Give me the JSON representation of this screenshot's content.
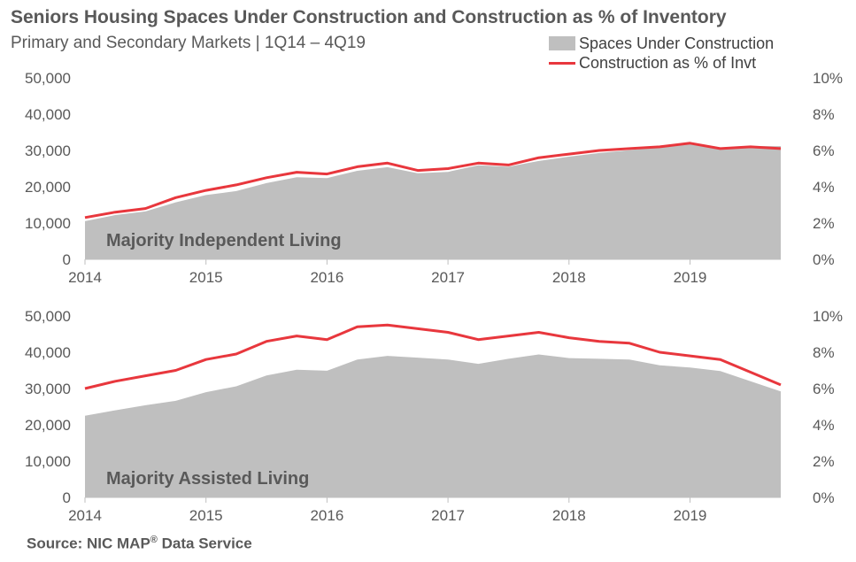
{
  "header": {
    "title": "Seniors Housing Spaces Under Construction and Construction as % of Inventory",
    "subtitle": "Primary and Secondary Markets | 1Q14 – 4Q19"
  },
  "legend": {
    "area_label": "Spaces Under Construction",
    "line_label": "Construction as % of Invt"
  },
  "source": {
    "prefix": "Source: NIC MAP",
    "registered": "®",
    "suffix": " Data Service"
  },
  "colors": {
    "area": "#bfbfbf",
    "line": "#e8373d",
    "text": "#595959"
  },
  "chart_data": [
    {
      "type": "area",
      "annotation": "Majority Independent Living",
      "x": [
        "1Q14",
        "2Q14",
        "3Q14",
        "4Q14",
        "1Q15",
        "2Q15",
        "3Q15",
        "4Q15",
        "1Q16",
        "2Q16",
        "3Q16",
        "4Q16",
        "1Q17",
        "2Q17",
        "3Q17",
        "4Q17",
        "1Q18",
        "2Q18",
        "3Q18",
        "4Q18",
        "1Q19",
        "2Q19",
        "3Q19",
        "4Q19"
      ],
      "x_tick_labels": [
        "2014",
        "2015",
        "2016",
        "2017",
        "2018",
        "2019"
      ],
      "series": [
        {
          "name": "Spaces Under Construction",
          "axis": "left",
          "type": "area",
          "values": [
            10500,
            12200,
            13200,
            15700,
            17700,
            18800,
            21000,
            22600,
            22400,
            24400,
            25400,
            23700,
            24100,
            25900,
            25500,
            27100,
            28300,
            29300,
            30100,
            30900,
            31700,
            30500,
            31200,
            31200
          ]
        },
        {
          "name": "Construction as % of Invt",
          "axis": "right",
          "type": "line",
          "values": [
            2.3,
            2.6,
            2.8,
            3.4,
            3.8,
            4.1,
            4.5,
            4.8,
            4.7,
            5.1,
            5.3,
            4.9,
            5.0,
            5.3,
            5.2,
            5.6,
            5.8,
            6.0,
            6.1,
            6.2,
            6.4,
            6.1,
            6.2,
            6.1
          ]
        }
      ],
      "y_left": {
        "ylim": [
          0,
          50000
        ],
        "ticks": [
          "0",
          "10,000",
          "20,000",
          "30,000",
          "40,000",
          "50,000"
        ]
      },
      "y_right": {
        "ylim": [
          0,
          10
        ],
        "ticks": [
          "0%",
          "2%",
          "4%",
          "6%",
          "8%",
          "10%"
        ]
      }
    },
    {
      "type": "area",
      "annotation": "Majority Assisted Living",
      "x": [
        "1Q14",
        "2Q14",
        "3Q14",
        "4Q14",
        "1Q15",
        "2Q15",
        "3Q15",
        "4Q15",
        "1Q16",
        "2Q16",
        "3Q16",
        "4Q16",
        "1Q17",
        "2Q17",
        "3Q17",
        "4Q17",
        "1Q18",
        "2Q18",
        "3Q18",
        "4Q18",
        "1Q19",
        "2Q19",
        "3Q19",
        "4Q19"
      ],
      "x_tick_labels": [
        "2014",
        "2015",
        "2016",
        "2017",
        "2018",
        "2019"
      ],
      "series": [
        {
          "name": "Spaces Under Construction",
          "axis": "left",
          "type": "area",
          "values": [
            22500,
            24000,
            25400,
            26600,
            29000,
            30600,
            33600,
            35200,
            34900,
            38000,
            39000,
            38500,
            38000,
            36800,
            38200,
            39400,
            38400,
            38200,
            38000,
            36400,
            35800,
            34800,
            32000,
            29200
          ]
        },
        {
          "name": "Construction as % of Invt",
          "axis": "right",
          "type": "line",
          "values": [
            6.0,
            6.4,
            6.7,
            7.0,
            7.6,
            7.9,
            8.6,
            8.9,
            8.7,
            9.4,
            9.5,
            9.3,
            9.1,
            8.7,
            8.9,
            9.1,
            8.8,
            8.6,
            8.5,
            8.0,
            7.8,
            7.6,
            6.9,
            6.2
          ]
        }
      ],
      "y_left": {
        "ylim": [
          0,
          50000
        ],
        "ticks": [
          "0",
          "10,000",
          "20,000",
          "30,000",
          "40,000",
          "50,000"
        ]
      },
      "y_right": {
        "ylim": [
          0,
          10
        ],
        "ticks": [
          "0%",
          "2%",
          "4%",
          "6%",
          "8%",
          "10%"
        ]
      }
    }
  ]
}
